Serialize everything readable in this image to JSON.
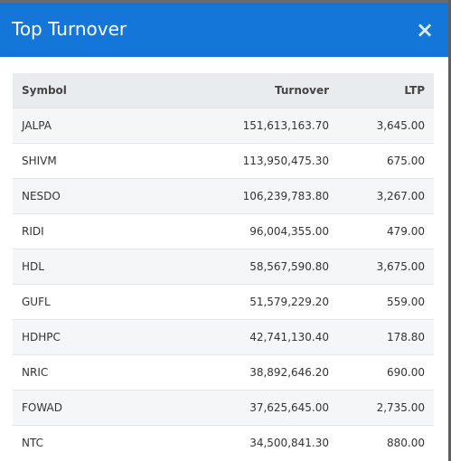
{
  "modal": {
    "title": "Top Turnover",
    "close_icon": "close-icon",
    "close_glyph": "×"
  },
  "table": {
    "headers": [
      "Symbol",
      "Turnover",
      "LTP"
    ],
    "rows": [
      {
        "symbol": "JALPA",
        "turnover": "151,613,163.70",
        "ltp": "3,645.00"
      },
      {
        "symbol": "SHIVM",
        "turnover": "113,950,475.30",
        "ltp": "675.00"
      },
      {
        "symbol": "NESDO",
        "turnover": "106,239,783.80",
        "ltp": "3,267.00"
      },
      {
        "symbol": "RIDI",
        "turnover": "96,004,355.00",
        "ltp": "479.00"
      },
      {
        "symbol": "HDL",
        "turnover": "58,567,590.80",
        "ltp": "3,675.00"
      },
      {
        "symbol": "GUFL",
        "turnover": "51,579,229.20",
        "ltp": "559.00"
      },
      {
        "symbol": "HDHPC",
        "turnover": "42,741,130.40",
        "ltp": "178.80"
      },
      {
        "symbol": "NRIC",
        "turnover": "38,892,646.20",
        "ltp": "690.00"
      },
      {
        "symbol": "FOWAD",
        "turnover": "37,625,645.00",
        "ltp": "2,735.00"
      },
      {
        "symbol": "NTC",
        "turnover": "34,500,841.30",
        "ltp": "880.00"
      }
    ]
  },
  "colors": {
    "header_bg": "#1476d8",
    "row_alt": "#f5f6f8",
    "thead_bg": "#e9ecef"
  }
}
